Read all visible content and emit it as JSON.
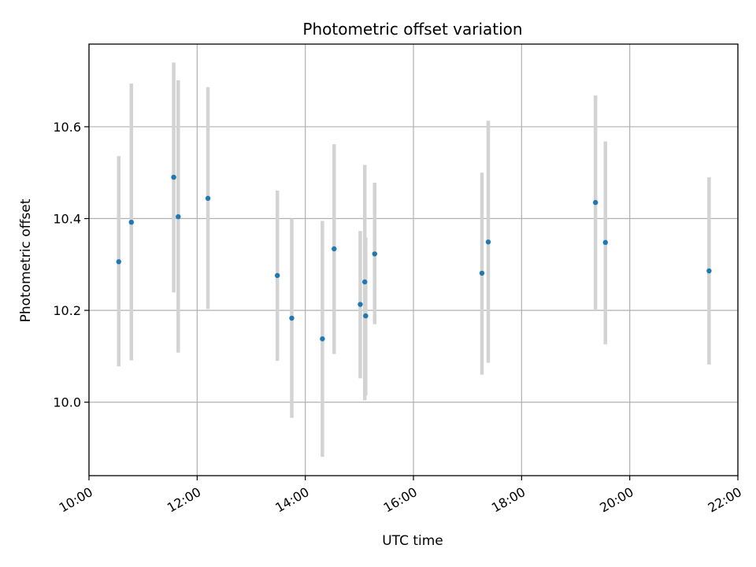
{
  "chart_data": {
    "type": "scatter",
    "title": "Photometric offset variation",
    "xlabel": "UTC time",
    "ylabel": "Photometric offset",
    "x_ticks": [
      "10:00",
      "12:00",
      "14:00",
      "16:00",
      "18:00",
      "20:00",
      "22:00"
    ],
    "y_ticks": [
      "10.0",
      "10.2",
      "10.4",
      "10.6"
    ],
    "xlim": [
      "10:00",
      "22:00"
    ],
    "ylim": [
      9.84,
      10.78
    ],
    "grid": true,
    "colors": {
      "marker": "#1f77b4",
      "errorbar": "#d3d3d3",
      "grid": "#b0b0b0"
    },
    "points": [
      {
        "x": "10:33",
        "y": 10.306,
        "ylow": 10.078,
        "yhigh": 10.536
      },
      {
        "x": "10:47",
        "y": 10.392,
        "ylow": 10.091,
        "yhigh": 10.694
      },
      {
        "x": "11:34",
        "y": 10.49,
        "ylow": 10.239,
        "yhigh": 10.74
      },
      {
        "x": "11:39",
        "y": 10.404,
        "ylow": 10.108,
        "yhigh": 10.701
      },
      {
        "x": "12:12",
        "y": 10.444,
        "ylow": 10.203,
        "yhigh": 10.686
      },
      {
        "x": "13:29",
        "y": 10.276,
        "ylow": 10.09,
        "yhigh": 10.461
      },
      {
        "x": "13:45",
        "y": 10.183,
        "ylow": 9.966,
        "yhigh": 10.4
      },
      {
        "x": "14:19",
        "y": 10.138,
        "ylow": 9.881,
        "yhigh": 10.395
      },
      {
        "x": "14:32",
        "y": 10.334,
        "ylow": 10.105,
        "yhigh": 10.562
      },
      {
        "x": "15:01",
        "y": 10.213,
        "ylow": 10.052,
        "yhigh": 10.373
      },
      {
        "x": "15:06",
        "y": 10.262,
        "ylow": 10.004,
        "yhigh": 10.517
      },
      {
        "x": "15:07",
        "y": 10.188,
        "ylow": 10.015,
        "yhigh": 10.359
      },
      {
        "x": "15:17",
        "y": 10.323,
        "ylow": 10.17,
        "yhigh": 10.478
      },
      {
        "x": "17:16",
        "y": 10.281,
        "ylow": 10.06,
        "yhigh": 10.5
      },
      {
        "x": "17:23",
        "y": 10.349,
        "ylow": 10.086,
        "yhigh": 10.613
      },
      {
        "x": "19:22",
        "y": 10.435,
        "ylow": 10.202,
        "yhigh": 10.668
      },
      {
        "x": "19:33",
        "y": 10.348,
        "ylow": 10.126,
        "yhigh": 10.568
      },
      {
        "x": "21:28",
        "y": 10.286,
        "ylow": 10.082,
        "yhigh": 10.49
      }
    ]
  }
}
